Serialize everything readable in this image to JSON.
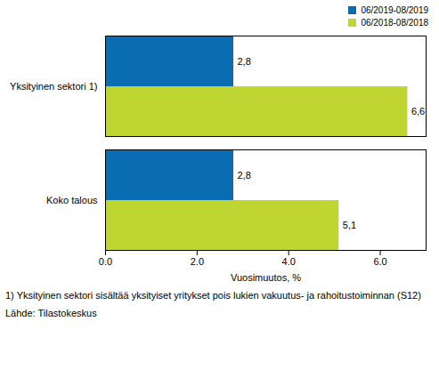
{
  "chart_data": {
    "type": "bar",
    "orientation": "horizontal",
    "categories": [
      "Yksityinen sektori 1)",
      "Koko talous"
    ],
    "series": [
      {
        "name": "06/2019-08/2019",
        "color": "#0a6cb1",
        "values": [
          2.8,
          2.8
        ],
        "value_labels": [
          "2,8",
          "2,8"
        ]
      },
      {
        "name": "06/2018-08/2018",
        "color": "#bfd531",
        "values": [
          6.6,
          5.1
        ],
        "value_labels": [
          "6,6",
          "5,1"
        ]
      }
    ],
    "x_label": "Vuosimuutos, %",
    "xlim": [
      0,
      7
    ],
    "xticks": [
      0,
      2,
      4,
      6
    ],
    "grid": false,
    "legend": "top-right",
    "data_labels": true,
    "notes": [
      "1) Yksityinen sektori sisältää yksityiset yritykset pois lukien vakuutus- ja rahoitustoiminnan (S12)",
      "Lähde: Tilastokeskus"
    ]
  }
}
